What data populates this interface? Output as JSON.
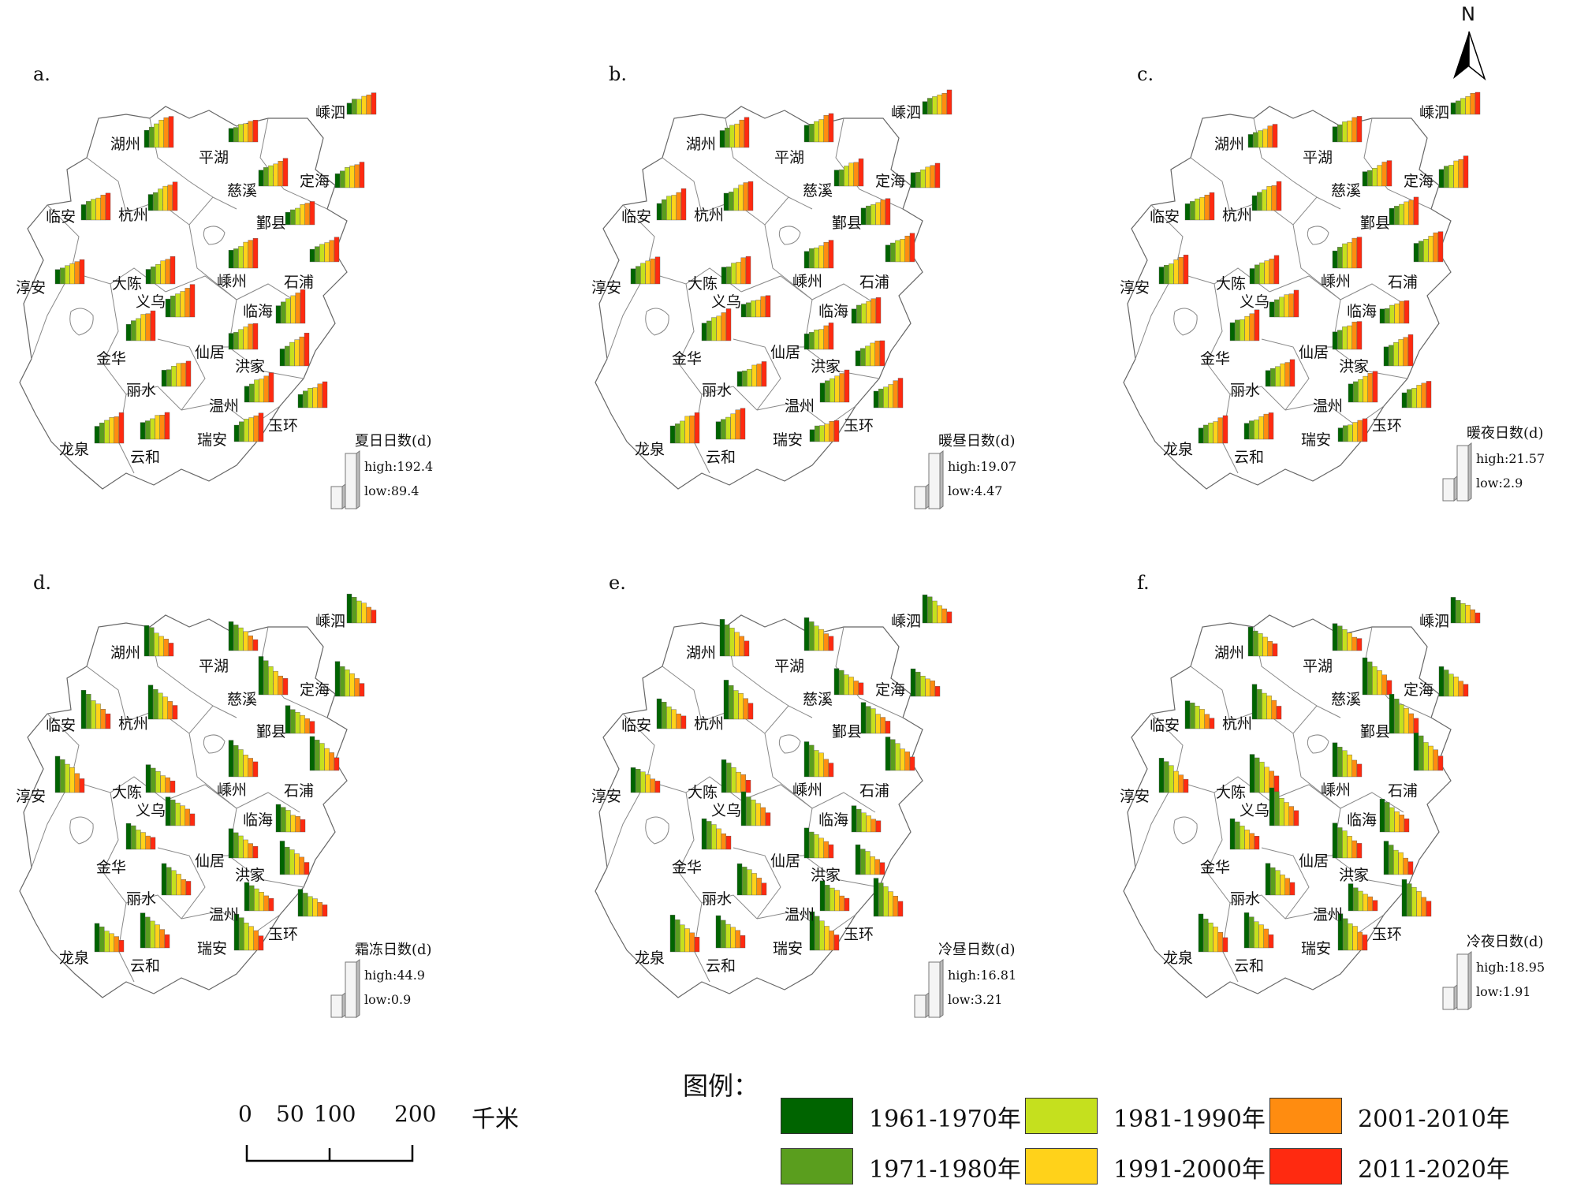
{
  "north_label": "N",
  "legend": {
    "title": "图例：",
    "items": [
      {
        "label": "1961-1970年",
        "color": "#006400"
      },
      {
        "label": "1971-1980年",
        "color": "#5a9e1e"
      },
      {
        "label": "1981-1990年",
        "color": "#c5e01e"
      },
      {
        "label": "1991-2000年",
        "color": "#ffd21a"
      },
      {
        "label": "2001-2010年",
        "color": "#ff8c10"
      },
      {
        "label": "2011-2020年",
        "color": "#ff2a10"
      }
    ]
  },
  "scale_bar": {
    "ticks": [
      "0",
      "50",
      "100",
      "200"
    ],
    "unit": "千米"
  },
  "cities": [
    "嵊泗",
    "湖州",
    "平湖",
    "慈溪",
    "定海",
    "临安",
    "杭州",
    "鄞县",
    "淳安",
    "大陈",
    "义乌",
    "嵊州",
    "石浦",
    "临海",
    "金华",
    "仙居",
    "洪家",
    "丽水",
    "温州",
    "玉环",
    "龙泉",
    "云和",
    "瑞安"
  ],
  "panels": [
    {
      "label": "a.",
      "metric": "夏日日数(d)",
      "high": "high:192.4",
      "low": "low:89.4",
      "trend": "up"
    },
    {
      "label": "b.",
      "metric": "暖昼日数(d)",
      "high": "high:19.07",
      "low": "low:4.47",
      "trend": "up"
    },
    {
      "label": "c.",
      "metric": "暖夜日数(d)",
      "high": "high:21.57",
      "low": "low:2.9",
      "trend": "up"
    },
    {
      "label": "d.",
      "metric": "霜冻日数(d)",
      "high": "high:44.9",
      "low": "low:0.9",
      "trend": "down"
    },
    {
      "label": "e.",
      "metric": "冷昼日数(d)",
      "high": "high:16.81",
      "low": "low:3.21",
      "trend": "down"
    },
    {
      "label": "f.",
      "metric": "冷夜日数(d)",
      "high": "high:18.95",
      "low": "low:1.91",
      "trend": "down"
    }
  ]
}
